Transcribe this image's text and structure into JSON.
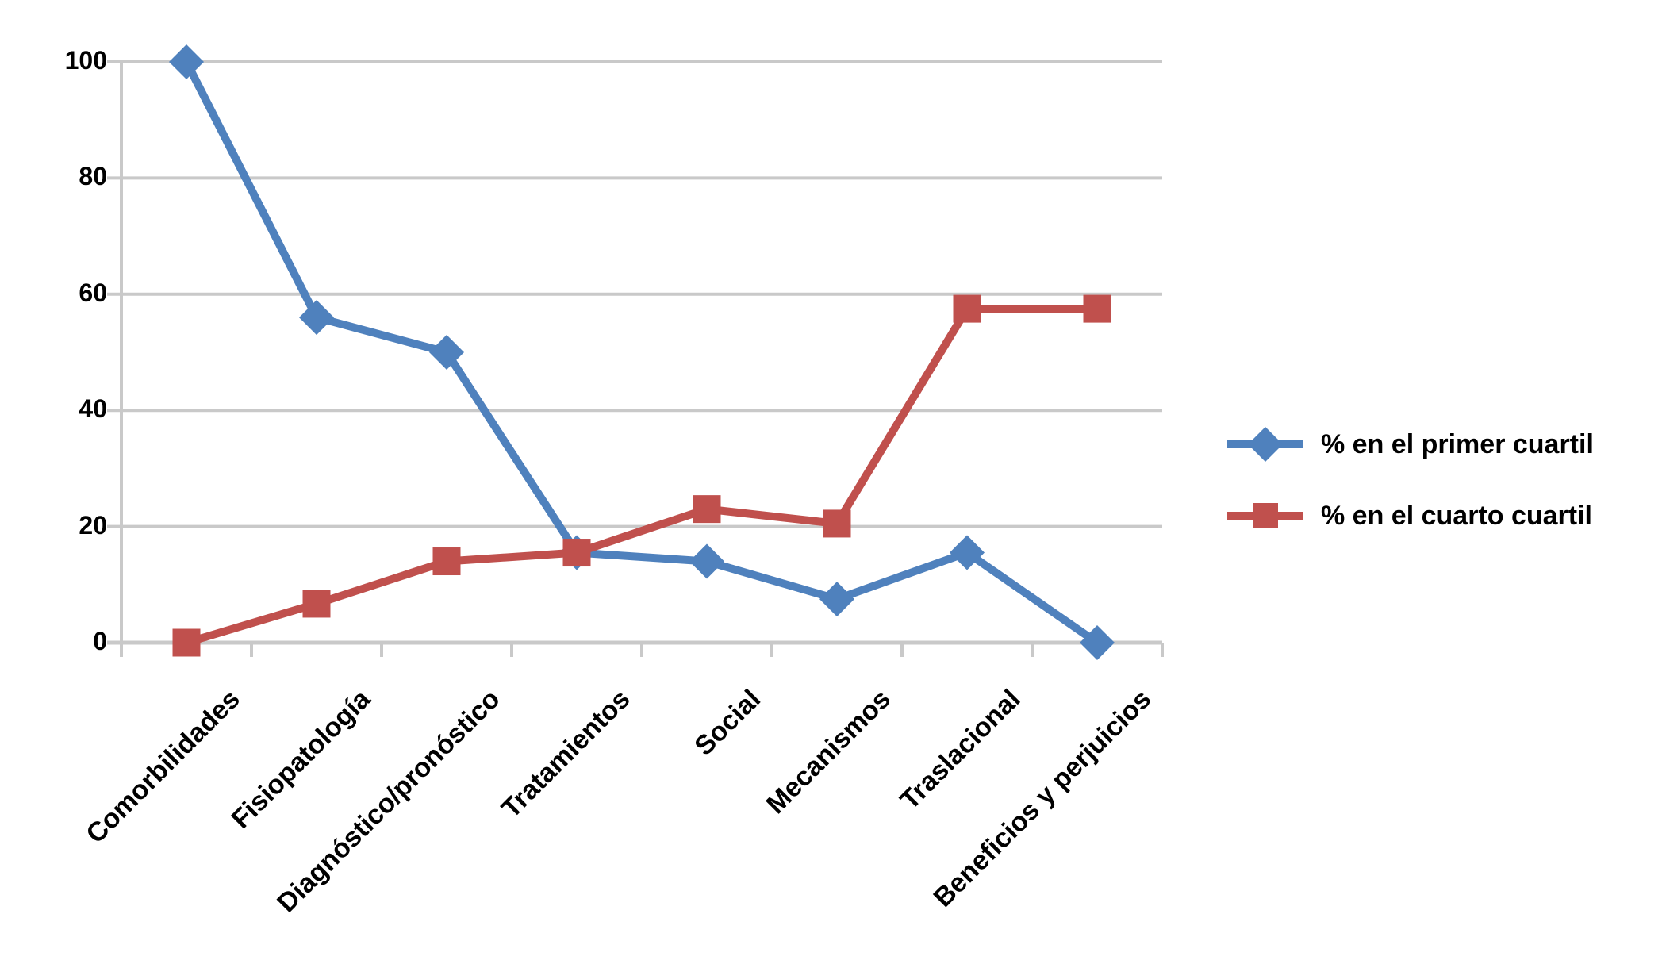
{
  "chart_data": {
    "type": "line",
    "categories": [
      "Comorbilidades",
      "Fisiopatología",
      "Diagnóstico/pronóstico",
      "Tratamientos",
      "Social",
      "Mecanismos",
      "Traslacional",
      "Beneficios y perjuicios"
    ],
    "series": [
      {
        "name": "% en el primer cuartil",
        "marker": "diamond",
        "color": "#4F81BD",
        "values": [
          100,
          56,
          50,
          15.5,
          14,
          7.5,
          15.5,
          0
        ]
      },
      {
        "name": "% en el cuarto cuartil",
        "marker": "square",
        "color": "#C0504D",
        "values": [
          0,
          6.7,
          14,
          15.5,
          23,
          20.5,
          57.5,
          57.5
        ]
      }
    ],
    "yticks": [
      0,
      20,
      40,
      60,
      80,
      100
    ],
    "ylim": [
      0,
      100
    ],
    "grid": "horizontal",
    "legend_position": "right",
    "colors": {
      "gridline": "#C9C9C9",
      "axis": "#C9C9C9",
      "text": "#000000",
      "background": "#FFFFFF"
    }
  }
}
